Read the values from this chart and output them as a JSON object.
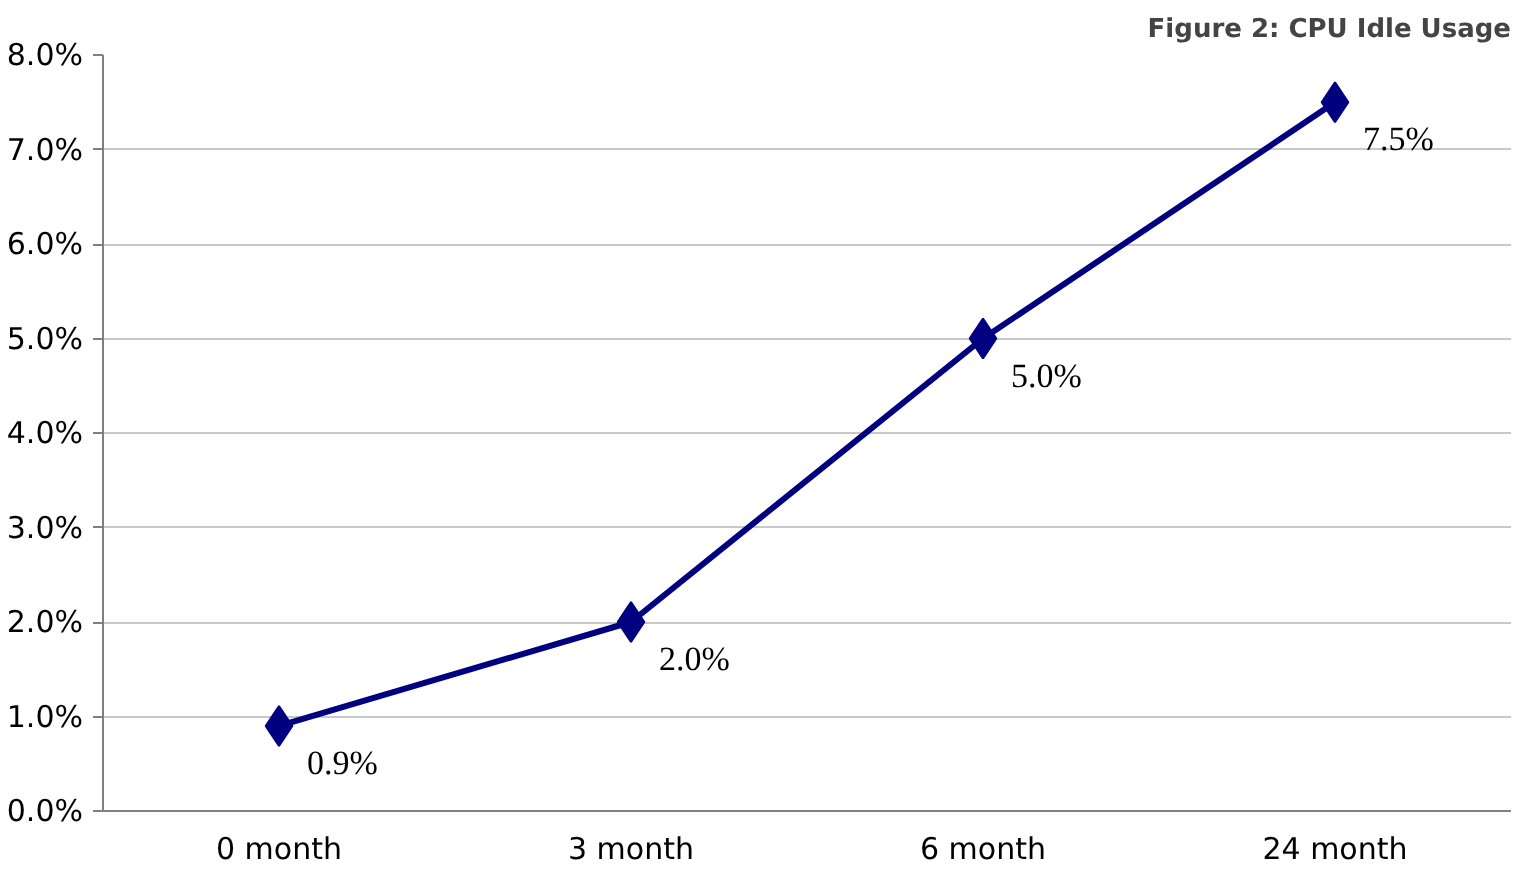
{
  "chart_data": {
    "type": "line",
    "title": "Figure 2: CPU Idle Usage",
    "categories": [
      "0 month",
      "3 month",
      "6 month",
      "24 month"
    ],
    "series": [
      {
        "color": "#000080",
        "values": [
          0.9,
          2.0,
          5.0,
          7.5
        ]
      }
    ],
    "value_labels": [
      "0.9%",
      "2.0%",
      "5.0%",
      "7.5%"
    ],
    "ylim": [
      0,
      8
    ],
    "yticks": [
      {
        "value": 0,
        "label": "0.0%"
      },
      {
        "value": 1,
        "label": "1.0%"
      },
      {
        "value": 2,
        "label": "2.0%"
      },
      {
        "value": 3,
        "label": "3.0%"
      },
      {
        "value": 4,
        "label": "4.0%"
      },
      {
        "value": 5,
        "label": "5.0%"
      },
      {
        "value": 6,
        "label": "6.0%"
      },
      {
        "value": 7,
        "label": "7.0%"
      },
      {
        "value": 8,
        "label": "8.0%"
      }
    ],
    "grid": "y",
    "marker": "diamond",
    "line_style": "solid"
  }
}
